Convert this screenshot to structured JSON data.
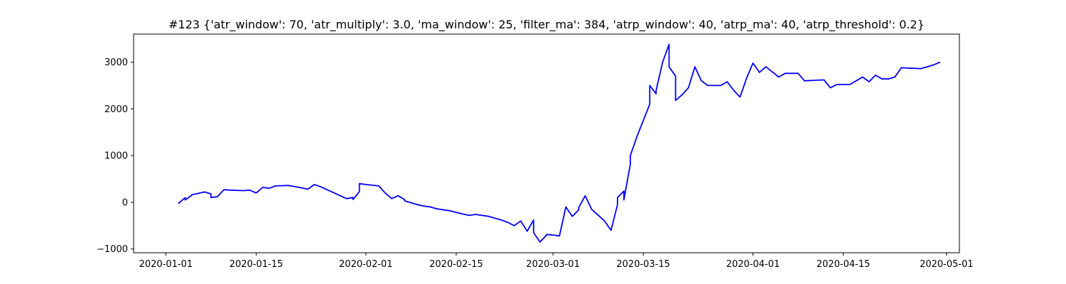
{
  "chart_data": {
    "type": "line",
    "title": "#123 {'atr_window': 70, 'atr_multiply': 3.0, 'ma_window': 25, 'filter_ma': 384, 'atrp_window': 40, 'atrp_ma': 40, 'atrp_threshold': 0.2}",
    "xlabel": "",
    "ylabel": "",
    "xlim": [
      "2019-12-27",
      "2020-05-03"
    ],
    "ylim": [
      -1080,
      3600
    ],
    "x_ticks": [
      "2020-01-01",
      "2020-01-15",
      "2020-02-01",
      "2020-02-15",
      "2020-03-01",
      "2020-03-15",
      "2020-04-01",
      "2020-04-15",
      "2020-05-01"
    ],
    "y_ticks": [
      -1000,
      0,
      1000,
      2000,
      3000
    ],
    "y_tick_labels": [
      "−1000",
      "0",
      "1000",
      "2000",
      "3000"
    ],
    "grid": false,
    "series": [
      {
        "color": "#0000ff",
        "x": [
          "2020-01-03",
          "2020-01-03",
          "2020-01-04",
          "2020-01-04",
          "2020-01-05",
          "2020-01-05",
          "2020-01-07",
          "2020-01-08",
          "2020-01-08",
          "2020-01-09",
          "2020-01-10",
          "2020-01-11",
          "2020-01-13",
          "2020-01-14",
          "2020-01-15",
          "2020-01-16",
          "2020-01-17",
          "2020-01-18",
          "2020-01-20",
          "2020-01-22",
          "2020-01-23",
          "2020-01-24",
          "2020-01-25",
          "2020-01-26",
          "2020-01-29",
          "2020-01-30",
          "2020-01-30",
          "2020-01-31",
          "2020-01-31",
          "2020-02-01",
          "2020-02-03",
          "2020-02-04",
          "2020-02-05",
          "2020-02-06",
          "2020-02-07",
          "2020-02-07",
          "2020-02-09",
          "2020-02-10",
          "2020-02-11",
          "2020-02-12",
          "2020-02-14",
          "2020-02-16",
          "2020-02-17",
          "2020-02-18",
          "2020-02-20",
          "2020-02-22",
          "2020-02-23",
          "2020-02-24",
          "2020-02-25",
          "2020-02-26",
          "2020-02-27",
          "2020-02-27",
          "2020-02-28",
          "2020-02-29",
          "2020-02-29",
          "2020-03-01",
          "2020-03-02",
          "2020-03-03",
          "2020-03-04",
          "2020-03-05",
          "2020-03-05",
          "2020-03-06",
          "2020-03-07",
          "2020-03-09",
          "2020-03-10",
          "2020-03-11",
          "2020-03-11",
          "2020-03-12",
          "2020-03-12",
          "2020-03-13",
          "2020-03-13",
          "2020-03-14",
          "2020-03-16",
          "2020-03-16",
          "2020-03-17",
          "2020-03-17",
          "2020-03-18",
          "2020-03-19",
          "2020-03-19",
          "2020-03-20",
          "2020-03-20",
          "2020-03-21",
          "2020-03-22",
          "2020-03-23",
          "2020-03-24",
          "2020-03-25",
          "2020-03-27",
          "2020-03-28",
          "2020-03-29",
          "2020-03-30",
          "2020-03-31",
          "2020-04-01",
          "2020-04-02",
          "2020-04-03",
          "2020-04-05",
          "2020-04-06",
          "2020-04-07",
          "2020-04-08",
          "2020-04-09",
          "2020-04-12",
          "2020-04-13",
          "2020-04-14",
          "2020-04-16",
          "2020-04-17",
          "2020-04-18",
          "2020-04-19",
          "2020-04-20",
          "2020-04-21",
          "2020-04-22",
          "2020-04-23",
          "2020-04-24",
          "2020-04-27",
          "2020-04-28",
          "2020-04-29",
          "2020-04-30"
        ],
        "values": [
          0,
          -20,
          100,
          50,
          150,
          160,
          220,
          180,
          100,
          120,
          270,
          260,
          250,
          260,
          200,
          320,
          300,
          350,
          360,
          310,
          280,
          380,
          330,
          270,
          80,
          100,
          60,
          230,
          400,
          380,
          350,
          200,
          80,
          140,
          60,
          30,
          -50,
          -80,
          -100,
          -140,
          -180,
          -250,
          -280,
          -260,
          -300,
          -380,
          -430,
          -500,
          -400,
          -620,
          -380,
          -650,
          -850,
          -700,
          -690,
          -700,
          -720,
          -100,
          -300,
          -160,
          -110,
          140,
          -150,
          -400,
          -600,
          -50,
          100,
          240,
          50,
          820,
          1000,
          1400,
          2100,
          2500,
          2320,
          2400,
          3000,
          3380,
          2900,
          2700,
          2180,
          2300,
          2450,
          2900,
          2600,
          2500,
          2500,
          2580,
          2400,
          2250,
          2650,
          2980,
          2780,
          2900,
          2680,
          2760,
          2760,
          2760,
          2600,
          2620,
          2450,
          2520,
          2520,
          2600,
          2680,
          2580,
          2720,
          2640,
          2640,
          2680,
          2880,
          2860,
          2900,
          2940,
          3000
        ]
      }
    ]
  }
}
